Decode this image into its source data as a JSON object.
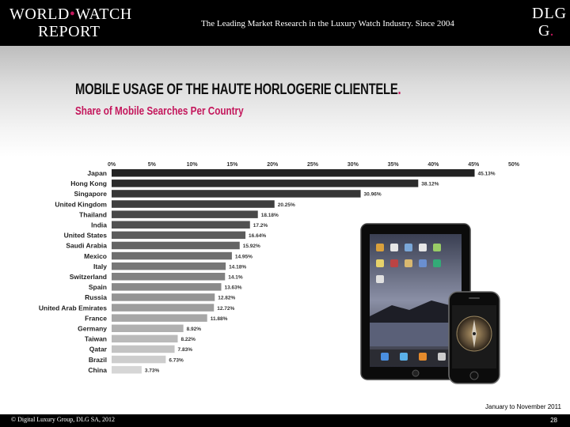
{
  "header": {
    "logo_line1_a": "World",
    "logo_line1_b": "Watch",
    "logo_line2": "Report",
    "tagline": "The Leading Market Research in the Luxury Watch Industry. Since 2004",
    "brand_line1": "DLG",
    "brand_line2": "G"
  },
  "slide": {
    "title": "MOBILE USAGE OF THE HAUTE HORLOGERIE CLIENTELE",
    "title_dot": ".",
    "subtitle": "Share of Mobile Searches Per Country",
    "note": "January to November 2011",
    "copyright": "© Digital Luxury Group, DLG SA, 2012",
    "page_number": "28"
  },
  "colors": {
    "accent": "#c4175c",
    "bar_dark": "#222222",
    "bar_light": "#d6d6d6"
  },
  "images": [
    "ipad",
    "iphone"
  ],
  "chart_data": {
    "type": "bar",
    "orientation": "horizontal",
    "categories": [
      "Japan",
      "Hong Kong",
      "Singapore",
      "United Kingdom",
      "Thailand",
      "India",
      "United States",
      "Saudi Arabia",
      "Mexico",
      "Italy",
      "Switzerland",
      "Spain",
      "Russia",
      "United Arab Emirates",
      "France",
      "Germany",
      "Taiwan",
      "Qatar",
      "Brazil",
      "China"
    ],
    "values": [
      45.13,
      38.12,
      30.96,
      20.25,
      18.18,
      17.2,
      16.64,
      15.92,
      14.95,
      14.18,
      14.1,
      13.63,
      12.82,
      12.72,
      11.88,
      8.92,
      8.22,
      7.83,
      6.73,
      3.73
    ],
    "value_labels": [
      "45.13%",
      "38.12%",
      "30.96%",
      "20.25%",
      "18.18%",
      "17.2%",
      "16.64%",
      "15.92%",
      "14.95%",
      "14.18%",
      "14.1%",
      "13.63%",
      "12.82%",
      "12.72%",
      "11.88%",
      "8.92%",
      "8.22%",
      "7.83%",
      "6.73%",
      "3.73%"
    ],
    "ticks": [
      "0%",
      "5%",
      "10%",
      "15%",
      "20%",
      "25%",
      "30%",
      "35%",
      "40%",
      "45%",
      "50%"
    ],
    "xlim": [
      0,
      50
    ],
    "grid": false,
    "legend": "none",
    "xlabel": "",
    "ylabel": ""
  }
}
